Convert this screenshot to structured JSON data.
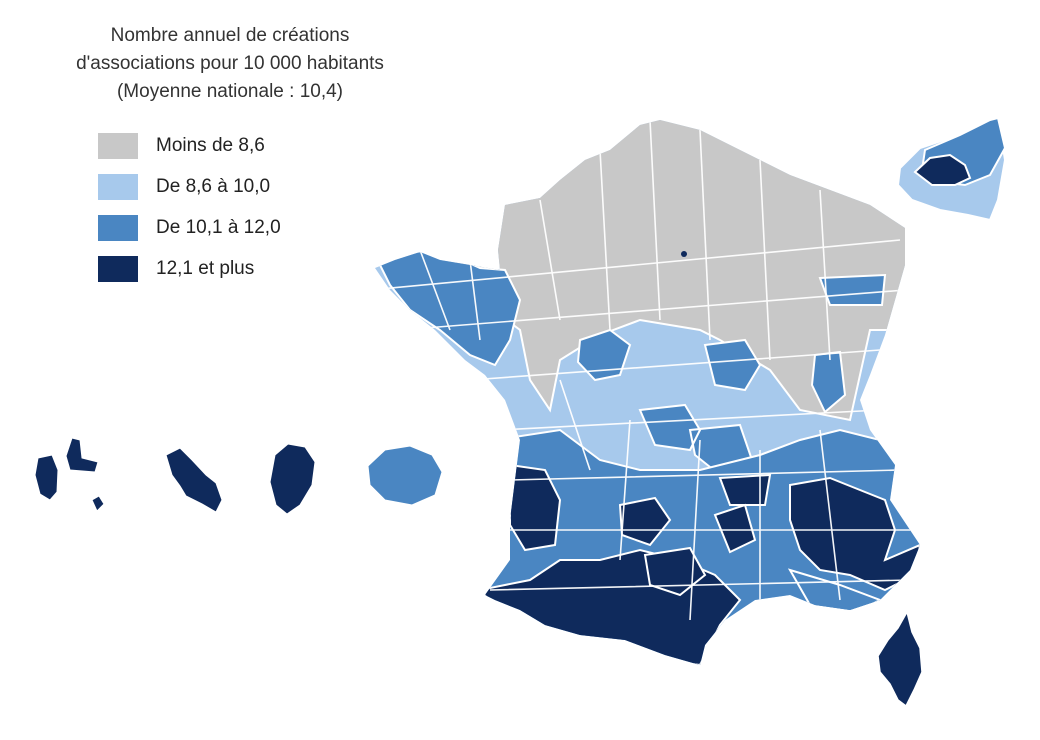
{
  "title": {
    "line1": "Nombre annuel de créations",
    "line2": "d'associations pour 10 000 habitants",
    "line3": "(Moyenne nationale : 10,4)"
  },
  "legend": [
    {
      "label": "Moins de 8,6",
      "color": "#c8c8c8"
    },
    {
      "label": "De 8,6 à 10,0",
      "color": "#a7c9ec"
    },
    {
      "label": "De 10,1 à 12,0",
      "color": "#4a86c2"
    },
    {
      "label": "12,1 et plus",
      "color": "#0f2a5c"
    }
  ],
  "colors": {
    "border": "#ffffff",
    "paris_marker": "#0f2a5c"
  }
}
